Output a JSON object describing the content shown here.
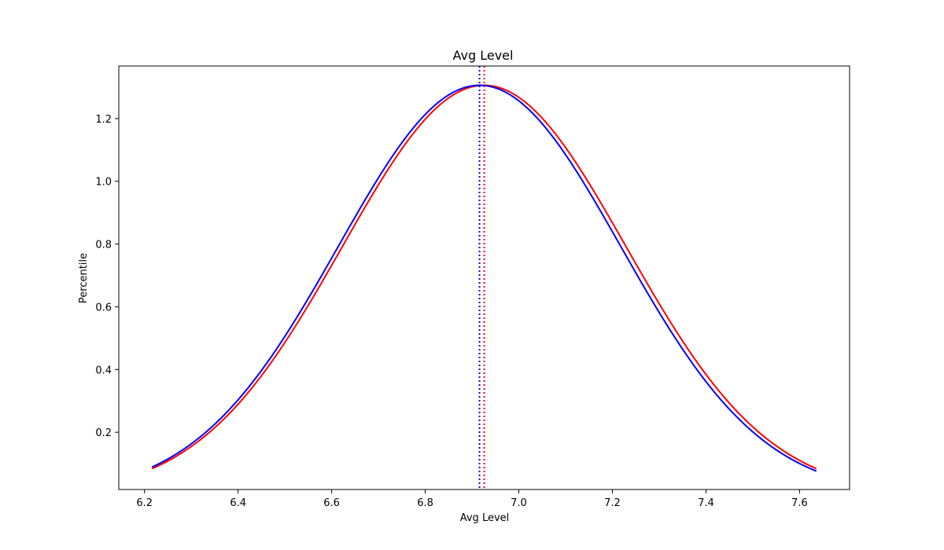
{
  "chart_data": {
    "type": "line",
    "title": "Avg Level",
    "xlabel": "Avg Level",
    "ylabel": "Percentile",
    "xlim": [
      6.145,
      7.707
    ],
    "ylim": [
      0.0175,
      1.3675
    ],
    "xticks": [
      6.2,
      6.4,
      6.6,
      6.8,
      7.0,
      7.2,
      7.4,
      7.6
    ],
    "xtick_labels": [
      "6.2",
      "6.4",
      "6.6",
      "6.8",
      "7.0",
      "7.2",
      "7.4",
      "7.6"
    ],
    "yticks": [
      0.2,
      0.4,
      0.6,
      0.8,
      1.0,
      1.2
    ],
    "ytick_labels": [
      "0.2",
      "0.4",
      "0.6",
      "0.8",
      "1.0",
      "1.2"
    ],
    "grid": false,
    "series": [
      {
        "color": "#ff0000",
        "style": "solid",
        "x": [
          6.216,
          6.3,
          6.4,
          6.5,
          6.6,
          6.7,
          6.8,
          6.9,
          6.926,
          7.0,
          7.1,
          7.2,
          7.3,
          7.4,
          7.5,
          7.6,
          7.636
        ],
        "y": [
          0.087,
          0.161,
          0.292,
          0.483,
          0.716,
          0.955,
          1.162,
          1.289,
          1.306,
          1.268,
          1.117,
          0.892,
          0.641,
          0.414,
          0.238,
          0.122,
          0.093
        ]
      },
      {
        "color": "#0000ff",
        "style": "solid",
        "x": [
          6.216,
          6.3,
          6.4,
          6.5,
          6.6,
          6.7,
          6.8,
          6.9,
          6.916,
          7.0,
          7.1,
          7.2,
          7.3,
          7.4,
          7.5,
          7.6,
          7.636
        ],
        "y": [
          0.093,
          0.17,
          0.308,
          0.505,
          0.742,
          0.978,
          1.177,
          1.295,
          1.306,
          1.256,
          1.098,
          0.867,
          0.617,
          0.395,
          0.224,
          0.113,
          0.082
        ]
      }
    ],
    "vlines": [
      {
        "x": 6.926,
        "color": "#ff0000",
        "style": "dotted"
      },
      {
        "x": 6.916,
        "color": "#0000ff",
        "style": "dotted"
      }
    ]
  }
}
